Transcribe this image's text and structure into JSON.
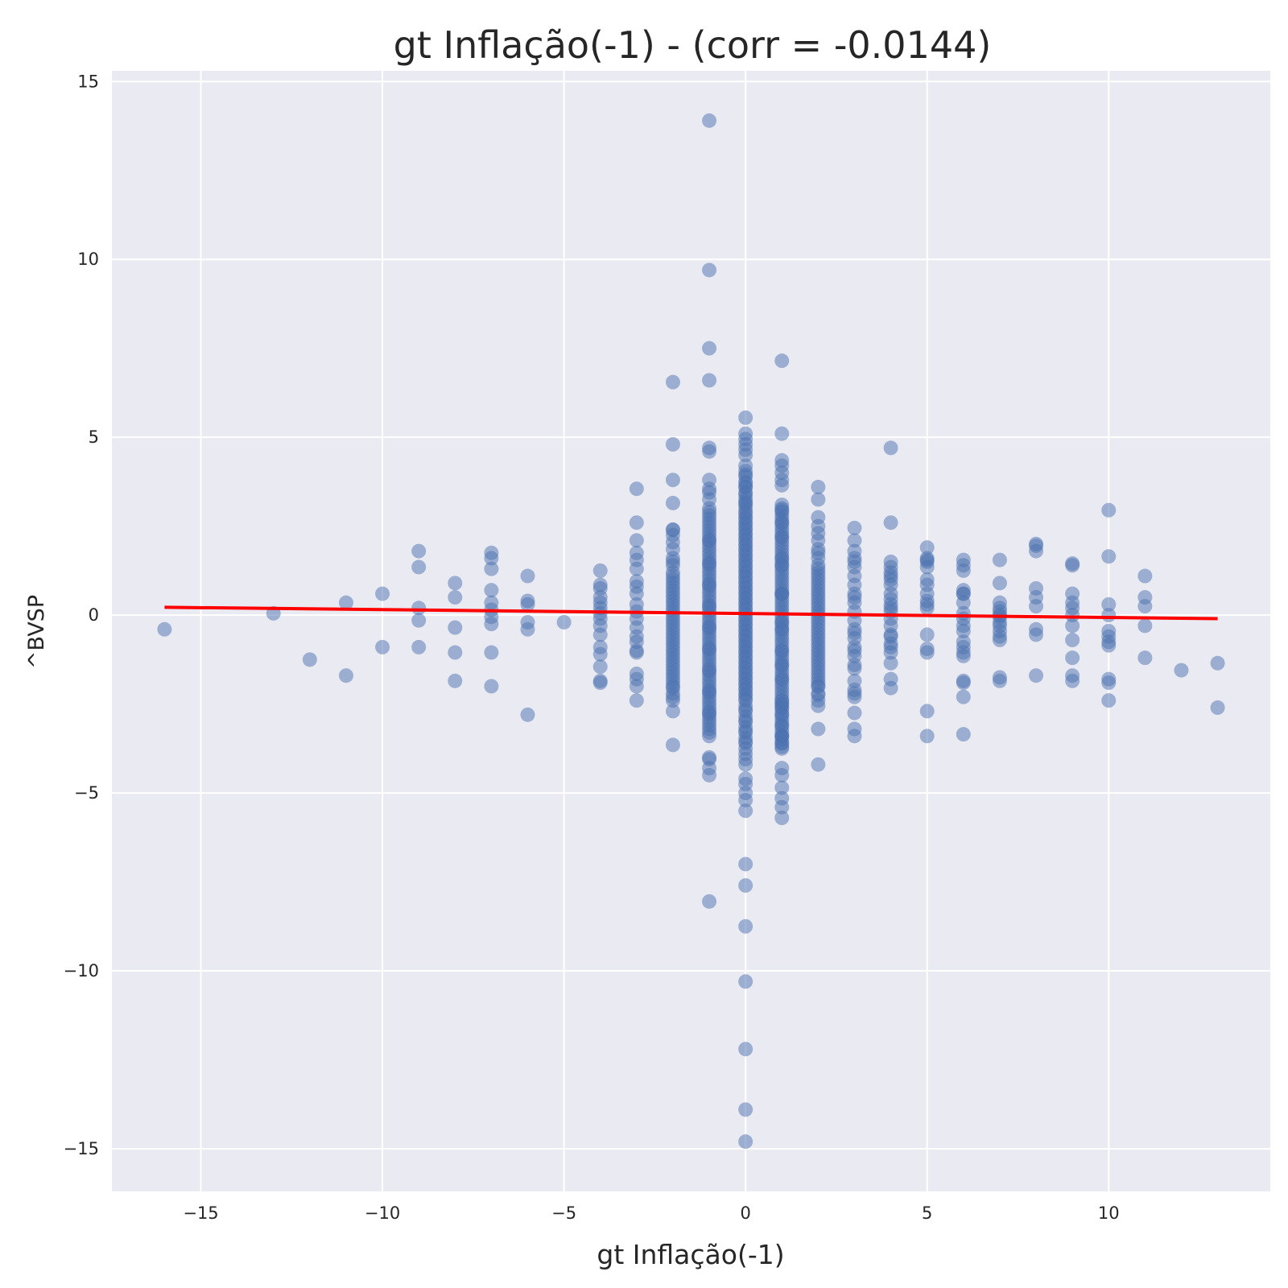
{
  "chart_data": {
    "type": "scatter",
    "title": "gt Inflação(-1) - (corr = -0.0144)",
    "xlabel": "gt Inflação(-1)",
    "ylabel": "^BVSP",
    "xlim": [
      -17.45,
      14.45
    ],
    "ylim": [
      -16.2,
      15.3
    ],
    "x_ticks": [
      {
        "value": -15,
        "label": "−15"
      },
      {
        "value": -10,
        "label": "−10"
      },
      {
        "value": -5,
        "label": "−5"
      },
      {
        "value": 0,
        "label": "0"
      },
      {
        "value": 5,
        "label": "5"
      },
      {
        "value": 10,
        "label": "10"
      }
    ],
    "y_ticks": [
      {
        "value": 15,
        "label": "15"
      },
      {
        "value": 10,
        "label": "10"
      },
      {
        "value": 5,
        "label": "5"
      },
      {
        "value": 0,
        "label": "0"
      },
      {
        "value": -5,
        "label": "−5"
      },
      {
        "value": -10,
        "label": "−10"
      },
      {
        "value": -15,
        "label": "−15"
      }
    ],
    "grid": true,
    "colors": {
      "background": "#eaeaf2",
      "grid": "#ffffff",
      "points": "#4c72b0",
      "trend": "#ff0000"
    },
    "series": [
      {
        "x": [
          -16,
          -13,
          -12,
          -11,
          -11,
          -10,
          -10,
          -9,
          -9,
          -9,
          -9,
          -9,
          -8,
          -8,
          -8,
          -8,
          -8,
          -7,
          -7,
          -7,
          -7,
          -7,
          -7,
          -7,
          -7,
          -7,
          -7,
          -6,
          -6,
          -6,
          -6,
          -6,
          -6,
          -5,
          -4,
          -4,
          -4,
          -4,
          -4,
          -4,
          -4,
          -4,
          -4,
          -4,
          -4,
          -4,
          -4,
          -4,
          -4,
          -3,
          -3,
          -3,
          -3,
          -3,
          -3,
          -3,
          -3,
          -3,
          -3,
          -3,
          -3,
          -3,
          -3,
          -3,
          -3,
          -3,
          -3,
          -3,
          -3,
          -3,
          -2,
          -2,
          -2,
          -2,
          -2,
          -2,
          -2,
          -2,
          -2,
          -2,
          -2,
          -2,
          -2,
          -2,
          -2,
          -2,
          -2,
          -2,
          -2,
          -2,
          -2,
          -2,
          -2,
          -2,
          -2,
          -2,
          -2,
          -2,
          -2,
          -2,
          -2,
          -2,
          -2,
          -2,
          -2,
          -2,
          -2,
          -2,
          -2,
          -2,
          -2,
          -2,
          -2,
          -2,
          -2,
          -2,
          -2,
          -2,
          -2,
          -2,
          -2,
          -1,
          -1,
          -1,
          -1,
          -1,
          -1,
          -1,
          -1,
          -1,
          -1,
          -1,
          -1,
          -1,
          -1,
          -1,
          -1,
          -1,
          -1,
          -1,
          -1,
          -1,
          -1,
          -1,
          -1,
          -1,
          -1,
          -1,
          -1,
          -1,
          -1,
          -1,
          -1,
          -1,
          -1,
          -1,
          -1,
          -1,
          -1,
          -1,
          -1,
          -1,
          -1,
          -1,
          -1,
          -1,
          -1,
          -1,
          -1,
          -1,
          -1,
          -1,
          -1,
          -1,
          -1,
          -1,
          -1,
          -1,
          -1,
          -1,
          -1,
          -1,
          -1,
          -1,
          -1,
          -1,
          -1,
          -1,
          -1,
          -1,
          -1,
          -1,
          -1,
          -1,
          -1,
          -1,
          -1,
          -1,
          -1,
          -1,
          -1,
          -1,
          -1,
          -1,
          -1,
          -1,
          -1,
          -1,
          -1,
          -1,
          0,
          0,
          0,
          0,
          0,
          0,
          0,
          0,
          0,
          0,
          0,
          0,
          0,
          0,
          0,
          0,
          0,
          0,
          0,
          0,
          0,
          0,
          0,
          0,
          0,
          0,
          0,
          0,
          0,
          0,
          0,
          0,
          0,
          0,
          0,
          0,
          0,
          0,
          0,
          0,
          0,
          0,
          0,
          0,
          0,
          0,
          0,
          0,
          0,
          0,
          0,
          0,
          0,
          0,
          0,
          0,
          0,
          0,
          0,
          0,
          0,
          0,
          0,
          0,
          0,
          0,
          0,
          0,
          0,
          0,
          0,
          0,
          0,
          0,
          0,
          0,
          0,
          0,
          0,
          0,
          0,
          0,
          0,
          0,
          0,
          0,
          0,
          0,
          0,
          0,
          0,
          0,
          0,
          0,
          0,
          0,
          0,
          0,
          0,
          0,
          0,
          0,
          0,
          0,
          0,
          0,
          0,
          0,
          0,
          0,
          0,
          0,
          0,
          0,
          0,
          0,
          0,
          0,
          0,
          0,
          0,
          1,
          1,
          1,
          1,
          1,
          1,
          1,
          1,
          1,
          1,
          1,
          1,
          1,
          1,
          1,
          1,
          1,
          1,
          1,
          1,
          1,
          1,
          1,
          1,
          1,
          1,
          1,
          1,
          1,
          1,
          1,
          1,
          1,
          1,
          1,
          1,
          1,
          1,
          1,
          1,
          1,
          1,
          1,
          1,
          1,
          1,
          1,
          1,
          1,
          1,
          1,
          1,
          1,
          1,
          1,
          1,
          1,
          1,
          1,
          1,
          1,
          1,
          1,
          1,
          1,
          1,
          1,
          1,
          1,
          1,
          1,
          1,
          1,
          1,
          1,
          1,
          1,
          1,
          1,
          1,
          1,
          1,
          1,
          1,
          1,
          1,
          1,
          1,
          1,
          1,
          1,
          1,
          1,
          1,
          1,
          1,
          1,
          1,
          1,
          1,
          1,
          1,
          1,
          2,
          2,
          2,
          2,
          2,
          2,
          2,
          2,
          2,
          2,
          2,
          2,
          2,
          2,
          2,
          2,
          2,
          2,
          2,
          2,
          2,
          2,
          2,
          2,
          2,
          2,
          2,
          2,
          2,
          2,
          2,
          2,
          2,
          2,
          2,
          2,
          2,
          2,
          2,
          2,
          2,
          2,
          2,
          2,
          2,
          2,
          2,
          2,
          2,
          2,
          2,
          3,
          3,
          3,
          3,
          3,
          3,
          3,
          3,
          3,
          3,
          3,
          3,
          3,
          3,
          3,
          3,
          3,
          3,
          3,
          3,
          3,
          3,
          3,
          3,
          3,
          3,
          3,
          3,
          4,
          4,
          4,
          4,
          4,
          4,
          4,
          4,
          4,
          4,
          4,
          4,
          4,
          4,
          4,
          4,
          4,
          4,
          4,
          4,
          4,
          4,
          4,
          5,
          5,
          5,
          5,
          5,
          5,
          5,
          5,
          5,
          5,
          5,
          5,
          5,
          5,
          5,
          5,
          6,
          6,
          6,
          6,
          6,
          6,
          6,
          6,
          6,
          6,
          6,
          6,
          6,
          6,
          6,
          6,
          6,
          6,
          6,
          7,
          7,
          7,
          7,
          7,
          7,
          7,
          7,
          7,
          7,
          7,
          7,
          7,
          7,
          8,
          8,
          8,
          8,
          8,
          8,
          8,
          8,
          8,
          9,
          9,
          9,
          9,
          9,
          9,
          9,
          9,
          9,
          9,
          9,
          10,
          10,
          10,
          10,
          10,
          10,
          10,
          10,
          10,
          10,
          10,
          11,
          11,
          11,
          11,
          11,
          12,
          13,
          13
        ],
        "y": [
          -0.4,
          0.05,
          -1.25,
          0.35,
          -1.7,
          0.6,
          -0.9,
          1.8,
          1.35,
          0.2,
          -0.15,
          -0.9,
          0.9,
          0.5,
          -0.35,
          -1.05,
          -1.85,
          1.75,
          1.6,
          1.3,
          0.7,
          0.35,
          0.15,
          -0.05,
          -0.25,
          -1.05,
          -2.0,
          1.1,
          0.4,
          0.3,
          -0.2,
          -0.4,
          -2.8,
          -0.2,
          1.25,
          0.85,
          0.75,
          0.5,
          0.35,
          0.2,
          0.05,
          -0.1,
          -0.3,
          -0.55,
          -0.9,
          -1.1,
          -1.45,
          -1.85,
          -1.9,
          3.55,
          2.6,
          2.1,
          1.75,
          1.55,
          1.3,
          0.95,
          0.8,
          0.6,
          0.3,
          0.1,
          -0.1,
          -0.35,
          -0.6,
          -0.75,
          -1.0,
          -1.05,
          -1.65,
          -1.8,
          -2.0,
          -2.4,
          3.8,
          3.15,
          2.4,
          2.05,
          1.85,
          1.6,
          1.4,
          1.2,
          1.0,
          0.8,
          0.6,
          0.4,
          0.2,
          0.0,
          -0.2,
          -0.4,
          -0.6,
          -0.8,
          -1.0,
          -1.2,
          -1.4,
          -1.6,
          -1.8,
          -2.0,
          -2.2,
          -2.4,
          -2.7,
          -3.65,
          2.25,
          1.1,
          0.5,
          -0.1,
          -0.7,
          -1.3,
          -1.9,
          2.4,
          0.9,
          0.3,
          -0.3,
          -0.9,
          -1.5,
          -2.05,
          1.5,
          0.7,
          0.1,
          -0.5,
          -1.1,
          -1.7,
          -2.3,
          6.55,
          4.8,
          4.7,
          4.6,
          3.8,
          3.55,
          3.45,
          3.25,
          3.0,
          2.8,
          2.6,
          2.4,
          2.2,
          2.0,
          1.8,
          1.6,
          1.4,
          1.2,
          1.0,
          0.8,
          0.6,
          0.4,
          0.2,
          0.0,
          -0.2,
          -0.4,
          -0.6,
          -0.8,
          -1.0,
          -1.2,
          -1.4,
          -1.6,
          -1.8,
          -2.0,
          -2.2,
          -2.4,
          -2.6,
          -2.8,
          -3.0,
          -3.2,
          -3.4,
          -4.0,
          -4.05,
          -4.3,
          -4.5,
          -8.05,
          2.7,
          2.3,
          1.9,
          1.5,
          1.1,
          0.7,
          0.3,
          -0.1,
          -0.5,
          -0.9,
          -1.3,
          -1.7,
          -2.1,
          -2.5,
          -2.9,
          -3.3,
          2.9,
          2.5,
          2.1,
          1.7,
          1.3,
          0.9,
          0.5,
          0.1,
          -0.3,
          -0.7,
          -1.1,
          -1.5,
          -1.9,
          -2.3,
          -2.7,
          -3.1,
          2.1,
          1.45,
          0.85,
          0.25,
          -0.35,
          -0.95,
          -1.55,
          -2.15,
          -2.75,
          13.9,
          9.7,
          7.5,
          6.6,
          5.55,
          5.1,
          4.95,
          4.8,
          4.65,
          4.5,
          4.2,
          4.05,
          3.9,
          3.75,
          3.6,
          3.45,
          3.3,
          3.15,
          3.0,
          2.85,
          2.7,
          2.55,
          2.4,
          2.25,
          2.1,
          1.95,
          1.8,
          1.65,
          1.5,
          1.35,
          1.2,
          1.05,
          0.9,
          0.75,
          0.6,
          0.45,
          0.3,
          0.15,
          0.0,
          -0.15,
          -0.3,
          -0.45,
          -0.6,
          -0.75,
          -0.9,
          -1.05,
          -1.2,
          -1.35,
          -1.5,
          -1.65,
          -1.8,
          -1.95,
          -2.1,
          -2.25,
          -2.4,
          -2.55,
          -2.7,
          -2.85,
          -3.0,
          -3.15,
          -3.3,
          -3.45,
          -3.6,
          -3.75,
          -3.9,
          -4.05,
          -4.2,
          -4.6,
          -4.75,
          -5.0,
          -5.2,
          -5.5,
          -7.0,
          -7.6,
          -8.75,
          -10.3,
          -12.2,
          -13.9,
          -14.8,
          3.95,
          3.7,
          3.4,
          3.1,
          2.75,
          2.45,
          2.15,
          1.85,
          1.55,
          1.25,
          0.95,
          0.65,
          0.35,
          0.05,
          -0.25,
          -0.55,
          -0.85,
          -1.15,
          -1.45,
          -1.75,
          -2.05,
          -2.35,
          -2.65,
          -2.95,
          -3.25,
          -3.55,
          3.6,
          3.2,
          2.9,
          2.6,
          2.3,
          2.0,
          1.7,
          1.4,
          1.1,
          0.8,
          0.5,
          0.2,
          -0.1,
          -0.4,
          -0.7,
          -1.0,
          -1.3,
          -1.6,
          -1.9,
          -2.2,
          -2.5,
          -2.8,
          -3.1,
          -3.4,
          -3.7,
          -4.3,
          7.15,
          5.1,
          4.35,
          4.2,
          4.0,
          3.8,
          3.65,
          3.1,
          2.95,
          2.8,
          2.6,
          2.4,
          2.2,
          2.0,
          1.8,
          1.6,
          1.4,
          1.2,
          1.0,
          0.8,
          0.6,
          0.4,
          0.2,
          0.0,
          -0.2,
          -0.4,
          -0.6,
          -0.8,
          -1.0,
          -1.2,
          -1.4,
          -1.6,
          -1.8,
          -2.0,
          -2.2,
          -2.4,
          -2.6,
          -2.8,
          -3.0,
          -3.2,
          -3.4,
          -3.6,
          -3.75,
          -4.5,
          -4.85,
          -5.15,
          -5.4,
          -5.7,
          2.9,
          2.5,
          2.1,
          1.7,
          1.3,
          0.9,
          0.5,
          0.1,
          -0.3,
          -0.7,
          -1.1,
          -1.5,
          -1.9,
          -2.3,
          -2.7,
          -3.1,
          -3.5,
          2.7,
          2.3,
          1.9,
          1.5,
          1.1,
          0.7,
          0.3,
          -0.1,
          -0.5,
          -0.9,
          -1.3,
          -1.7,
          -2.1,
          -2.5,
          -2.9,
          -3.3,
          3.0,
          2.2,
          1.4,
          0.6,
          -0.2,
          -1.0,
          -1.8,
          -2.6,
          -3.4,
          2.6,
          1.6,
          0.6,
          -0.4,
          -1.4,
          -2.4,
          -3.6,
          3.6,
          3.25,
          2.75,
          2.5,
          2.3,
          2.1,
          1.85,
          1.6,
          1.4,
          1.2,
          1.0,
          0.8,
          0.6,
          0.4,
          0.2,
          0.0,
          -0.2,
          -0.4,
          -0.6,
          -0.8,
          -1.0,
          -1.2,
          -1.4,
          -1.6,
          -1.8,
          -2.0,
          -2.25,
          -2.55,
          -3.2,
          -4.2,
          1.75,
          1.3,
          0.9,
          0.5,
          0.1,
          -0.3,
          -0.7,
          -1.1,
          -1.5,
          -1.9,
          -2.2,
          1.1,
          0.7,
          0.3,
          -0.1,
          -0.5,
          -0.9,
          -1.3,
          -1.7,
          -2.0,
          -2.4,
          2.45,
          2.1,
          1.8,
          1.6,
          1.35,
          1.1,
          0.85,
          0.6,
          0.35,
          0.1,
          -0.15,
          -0.4,
          -0.65,
          -0.9,
          -1.15,
          -1.4,
          -1.85,
          -2.1,
          -2.2,
          -2.75,
          -3.2,
          -3.4,
          1.5,
          0.5,
          -0.5,
          -1.0,
          -1.5,
          -2.3,
          4.7,
          2.6,
          1.5,
          1.35,
          1.2,
          1.0,
          0.85,
          0.6,
          0.45,
          0.3,
          0.1,
          -0.1,
          -0.3,
          -0.55,
          -0.8,
          -0.9,
          -1.05,
          -1.35,
          -1.8,
          -2.05,
          1.1,
          0.2,
          -0.6,
          1.9,
          1.6,
          1.5,
          1.35,
          1.0,
          0.85,
          0.6,
          0.4,
          0.3,
          0.2,
          -0.55,
          -0.95,
          -1.05,
          -2.7,
          -3.4,
          1.55,
          1.55,
          1.4,
          1.25,
          0.7,
          0.6,
          0.35,
          0.05,
          -0.1,
          -0.3,
          -0.45,
          -0.75,
          -0.9,
          -1.05,
          -1.15,
          -1.85,
          -1.9,
          -2.3,
          -3.35,
          0.6,
          1.55,
          0.9,
          0.35,
          0.2,
          0.1,
          0.0,
          -0.05,
          -0.2,
          -0.3,
          -0.45,
          -0.6,
          -0.7,
          -1.75,
          -1.85,
          1.95,
          1.8,
          0.75,
          0.5,
          0.25,
          -0.4,
          -0.55,
          -1.7,
          2.0,
          1.45,
          1.4,
          0.6,
          0.35,
          0.2,
          0.0,
          -0.3,
          -0.7,
          -1.2,
          -1.7,
          -1.85,
          2.95,
          1.65,
          0.3,
          0.0,
          -0.45,
          -0.6,
          -0.75,
          -0.85,
          -1.8,
          -1.9,
          -2.4,
          1.1,
          0.5,
          0.25,
          -0.3,
          -1.2,
          -1.55,
          -1.35,
          -2.6
        ]
      }
    ],
    "trend_line": {
      "x": [
        -16,
        13
      ],
      "y": [
        0.22,
        -0.1
      ]
    }
  }
}
